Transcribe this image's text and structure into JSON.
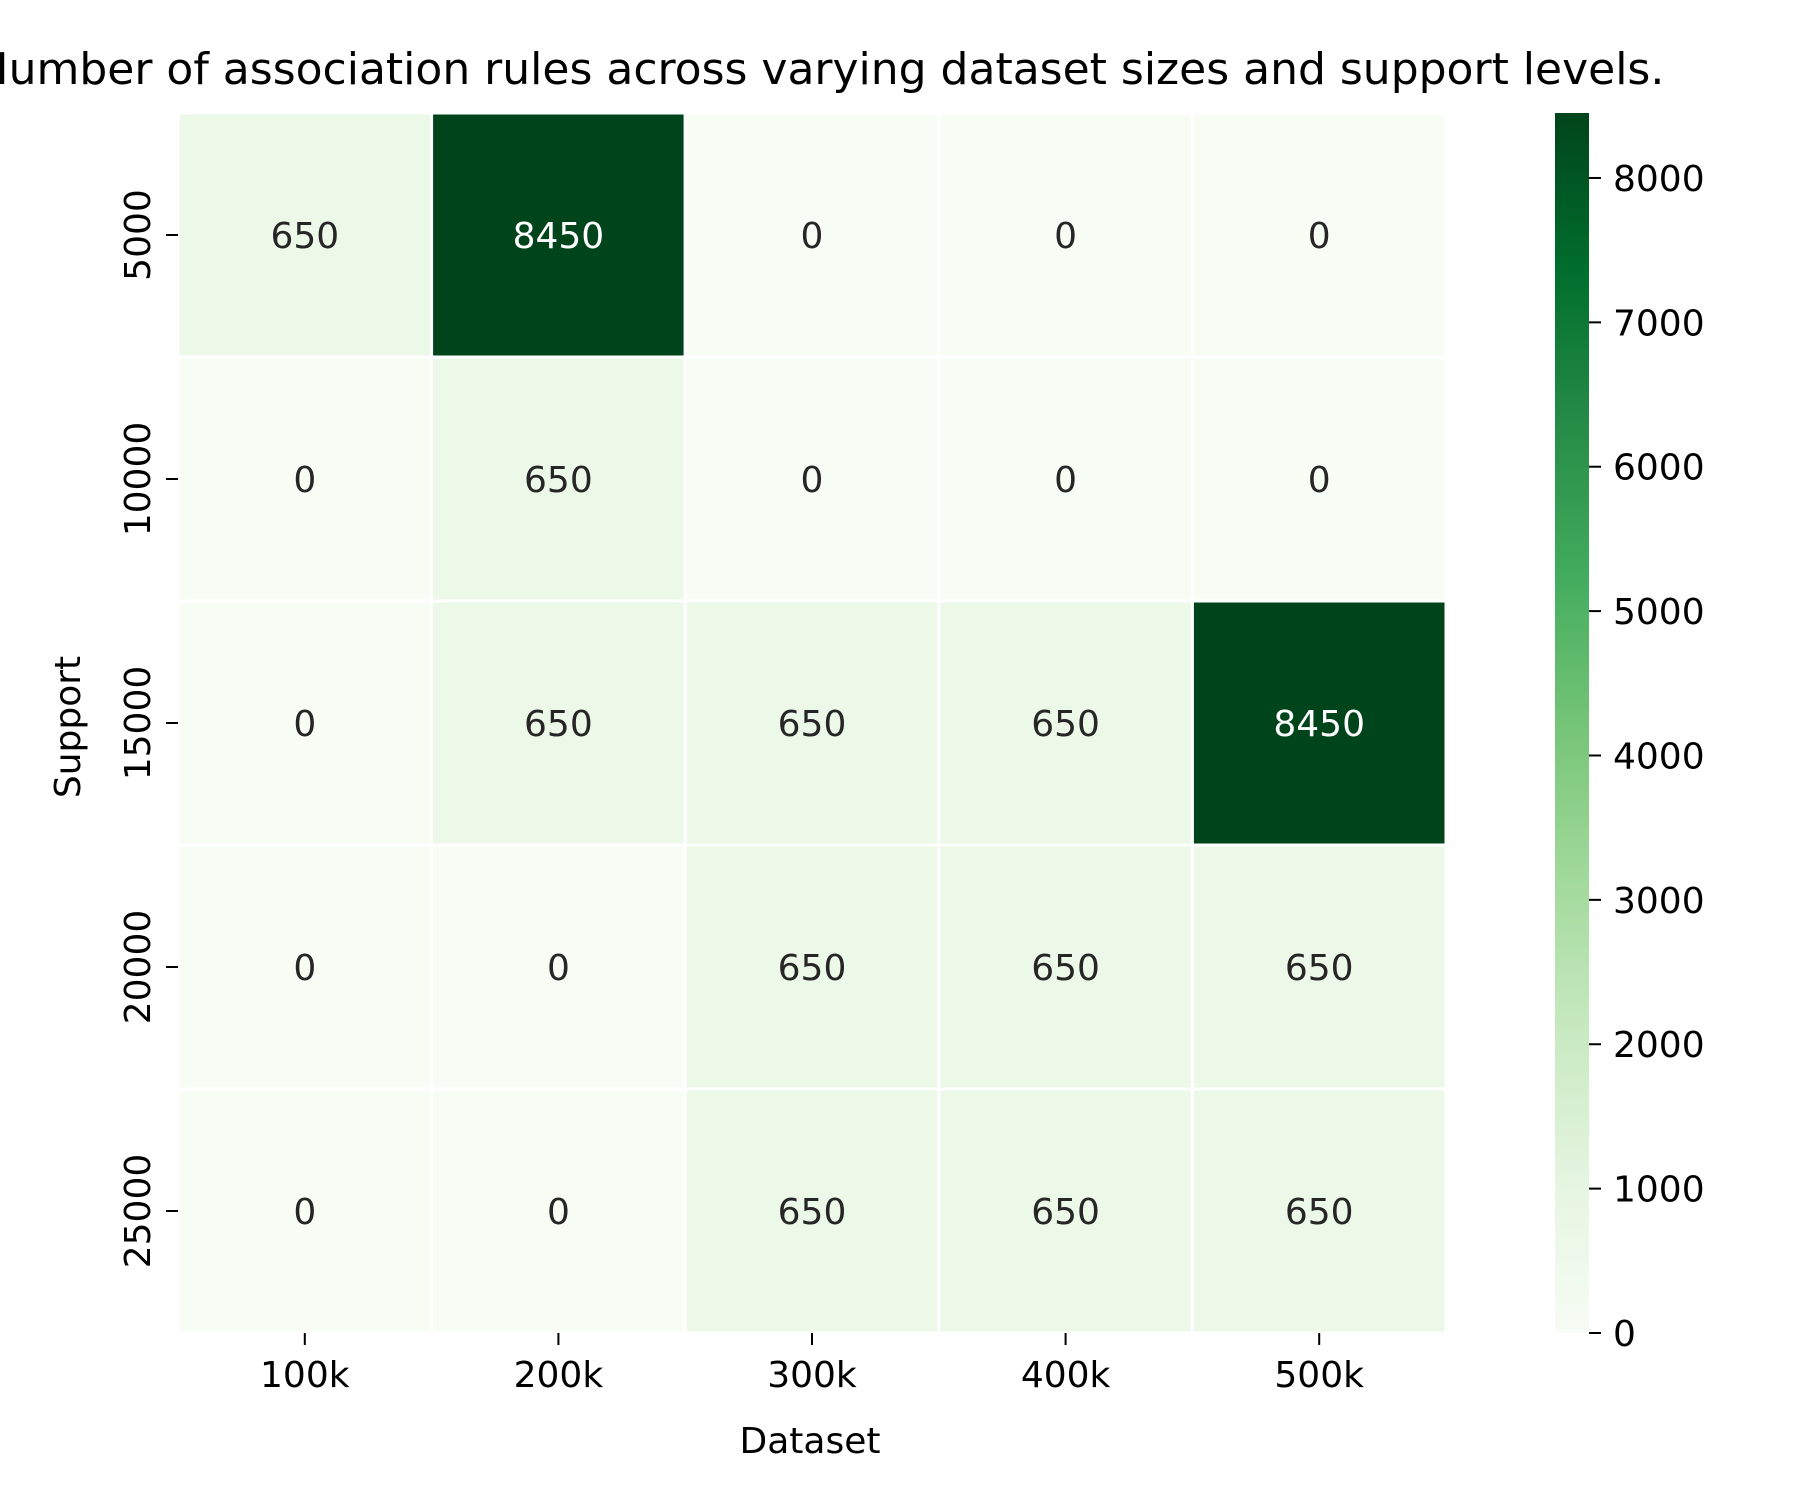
{
  "chart_data": {
    "type": "heatmap",
    "title": "Number of association rules across varying dataset sizes and support levels.",
    "xlabel": "Dataset",
    "ylabel": "Support",
    "x_categories": [
      "100k",
      "200k",
      "300k",
      "400k",
      "500k"
    ],
    "y_categories": [
      "5000",
      "10000",
      "15000",
      "20000",
      "25000"
    ],
    "values": [
      [
        650,
        8450,
        0,
        0,
        0
      ],
      [
        0,
        650,
        0,
        0,
        0
      ],
      [
        0,
        650,
        650,
        650,
        8450
      ],
      [
        0,
        0,
        650,
        650,
        650
      ],
      [
        0,
        0,
        650,
        650,
        650
      ]
    ],
    "colorbar": {
      "range": [
        0,
        8450
      ],
      "ticks": [
        0,
        1000,
        2000,
        3000,
        4000,
        5000,
        6000,
        7000,
        8000
      ]
    },
    "colormap": "Greens",
    "cell_gap_color": "#ffffff",
    "annotated": true
  }
}
